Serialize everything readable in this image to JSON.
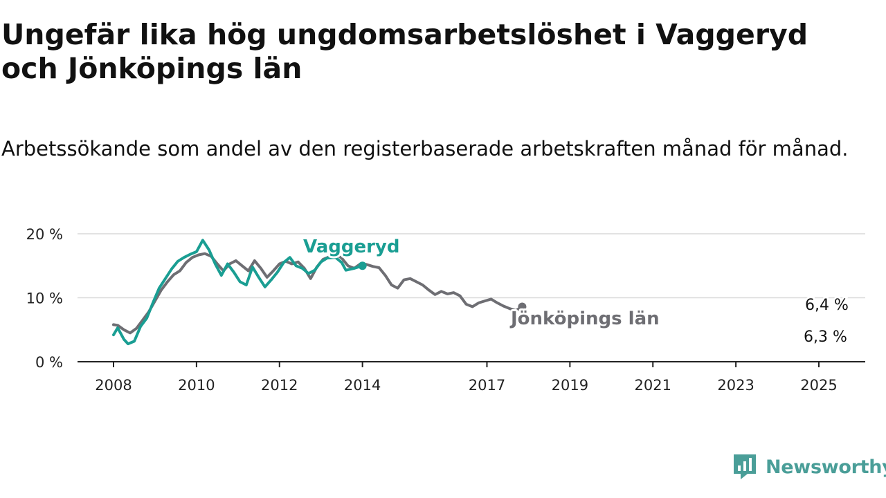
{
  "title": "Ungefär lika hög ungdomsarbetslöshet i Vaggeryd och Jönköpings län",
  "subtitle": "Arbetssökande som andel av den registerbaserade arbetskraften månad för månad.",
  "brand": {
    "name": "Newsworthy",
    "icon": "newsworthy-logo-icon",
    "color": "#4a9e98"
  },
  "chart_data": {
    "type": "line",
    "ylim": [
      0,
      20
    ],
    "y_ticks": [
      0,
      10,
      20
    ],
    "y_tick_labels": [
      "0 %",
      "10 %",
      "20 %"
    ],
    "x_ticks": [
      2008,
      2010,
      2012,
      2014,
      2017,
      2019,
      2021,
      2023,
      2025
    ],
    "x_tick_labels": [
      "2008",
      "2010",
      "2012",
      "2014",
      "2017",
      "2019",
      "2021",
      "2023",
      "2025"
    ],
    "grid": true,
    "series": [
      {
        "name": "Jönköpings län",
        "color": "#6e6e73",
        "end_label": "6,4 %",
        "points": [
          [
            2008.0,
            5.8
          ],
          [
            2008.1,
            5.7
          ],
          [
            2008.25,
            5.0
          ],
          [
            2008.4,
            4.5
          ],
          [
            2008.55,
            5.2
          ],
          [
            2008.7,
            6.5
          ],
          [
            2008.85,
            7.8
          ],
          [
            2009.0,
            9.5
          ],
          [
            2009.15,
            11.2
          ],
          [
            2009.3,
            12.5
          ],
          [
            2009.45,
            13.6
          ],
          [
            2009.6,
            14.2
          ],
          [
            2009.75,
            15.5
          ],
          [
            2009.9,
            16.3
          ],
          [
            2010.05,
            16.7
          ],
          [
            2010.2,
            16.9
          ],
          [
            2010.35,
            16.5
          ],
          [
            2010.5,
            15.3
          ],
          [
            2010.65,
            14.2
          ],
          [
            2010.8,
            15.3
          ],
          [
            2010.95,
            15.8
          ],
          [
            2011.1,
            15.0
          ],
          [
            2011.25,
            14.2
          ],
          [
            2011.4,
            15.8
          ],
          [
            2011.55,
            14.6
          ],
          [
            2011.7,
            13.2
          ],
          [
            2011.85,
            14.2
          ],
          [
            2012.0,
            15.3
          ],
          [
            2012.15,
            15.7
          ],
          [
            2012.3,
            15.3
          ],
          [
            2012.45,
            15.6
          ],
          [
            2012.6,
            14.6
          ],
          [
            2012.75,
            13.0
          ],
          [
            2012.9,
            14.8
          ],
          [
            2013.05,
            16.0
          ],
          [
            2013.2,
            16.4
          ],
          [
            2013.35,
            16.8
          ],
          [
            2013.5,
            16.2
          ],
          [
            2013.65,
            15.0
          ],
          [
            2013.8,
            14.6
          ],
          [
            2013.95,
            15.3
          ],
          [
            2014.1,
            15.2
          ],
          [
            2014.25,
            14.9
          ],
          [
            2014.4,
            14.7
          ],
          [
            2014.55,
            13.5
          ],
          [
            2014.7,
            12.0
          ],
          [
            2014.85,
            11.5
          ],
          [
            2015.0,
            12.8
          ],
          [
            2015.15,
            13.0
          ],
          [
            2015.3,
            12.5
          ],
          [
            2015.45,
            12.0
          ],
          [
            2015.6,
            11.2
          ],
          [
            2015.75,
            10.5
          ],
          [
            2015.9,
            11.0
          ],
          [
            2016.05,
            10.6
          ],
          [
            2016.2,
            10.8
          ],
          [
            2016.35,
            10.3
          ],
          [
            2016.5,
            9.0
          ],
          [
            2016.65,
            8.6
          ],
          [
            2016.8,
            9.2
          ],
          [
            2016.95,
            9.5
          ],
          [
            2017.1,
            9.8
          ],
          [
            2017.25,
            9.2
          ],
          [
            2017.4,
            8.7
          ],
          [
            2017.55,
            8.3
          ],
          [
            2017.7,
            8.0
          ],
          [
            2017.85,
            8.6
          ]
        ]
      },
      {
        "name": "Vaggeryd",
        "color": "#1a9e93",
        "end_label": "6,3 %",
        "points": [
          [
            2008.0,
            4.2
          ],
          [
            2008.1,
            5.3
          ],
          [
            2008.25,
            3.5
          ],
          [
            2008.35,
            2.8
          ],
          [
            2008.5,
            3.2
          ],
          [
            2008.65,
            5.5
          ],
          [
            2008.8,
            6.8
          ],
          [
            2008.95,
            9.2
          ],
          [
            2009.1,
            11.5
          ],
          [
            2009.25,
            13.0
          ],
          [
            2009.4,
            14.5
          ],
          [
            2009.55,
            15.7
          ],
          [
            2009.7,
            16.3
          ],
          [
            2009.85,
            16.8
          ],
          [
            2010.0,
            17.2
          ],
          [
            2010.15,
            19.0
          ],
          [
            2010.3,
            17.5
          ],
          [
            2010.45,
            15.3
          ],
          [
            2010.6,
            13.5
          ],
          [
            2010.75,
            15.3
          ],
          [
            2010.9,
            14.0
          ],
          [
            2011.05,
            12.5
          ],
          [
            2011.2,
            12.0
          ],
          [
            2011.35,
            14.8
          ],
          [
            2011.5,
            13.2
          ],
          [
            2011.65,
            11.7
          ],
          [
            2011.8,
            12.8
          ],
          [
            2011.95,
            14.0
          ],
          [
            2012.1,
            15.5
          ],
          [
            2012.25,
            16.3
          ],
          [
            2012.4,
            15.0
          ],
          [
            2012.55,
            14.6
          ],
          [
            2012.7,
            13.8
          ],
          [
            2012.85,
            14.3
          ],
          [
            2013.0,
            15.6
          ],
          [
            2013.15,
            16.2
          ],
          [
            2013.35,
            16.3
          ],
          [
            2013.5,
            15.5
          ],
          [
            2013.6,
            14.3
          ],
          [
            2013.8,
            14.6
          ],
          [
            2014.0,
            15.0
          ]
        ]
      }
    ]
  },
  "series_labels": {
    "vaggeryd": "Vaggeryd",
    "jonkoping": "Jönköpings län"
  }
}
